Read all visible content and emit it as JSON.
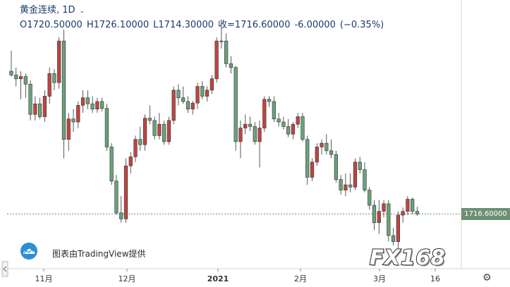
{
  "header": {
    "symbol": "黄金连续, 1D",
    "dropdown_icon": "chevron-down-icon",
    "open": "O1720.50000",
    "high": "H1726.10000",
    "low": "L1714.30000",
    "close": "收=1716.60000",
    "change": "-6.00000",
    "change_pct": "(−0.35%)"
  },
  "price_tag": "1716.60000",
  "attribution": "图表由TradingView提供",
  "watermark": "FX168",
  "colors": {
    "up": "#c0453f",
    "down": "#6aa27c",
    "header_text": "#1a3a6b",
    "last_price": "#6d8f76"
  },
  "chart_data": {
    "type": "candlestick",
    "x_ticks": [
      "11月",
      "12月",
      "2021",
      "2月",
      "3月",
      "16"
    ],
    "last_price": 1716.6,
    "ohlc": [
      [
        1905,
        1932,
        1898,
        1900
      ],
      [
        1900,
        1910,
        1885,
        1895
      ],
      [
        1895,
        1905,
        1868,
        1898
      ],
      [
        1898,
        1902,
        1870,
        1888
      ],
      [
        1888,
        1893,
        1840,
        1848
      ],
      [
        1848,
        1872,
        1840,
        1862
      ],
      [
        1862,
        1870,
        1842,
        1845
      ],
      [
        1845,
        1880,
        1838,
        1872
      ],
      [
        1872,
        1910,
        1862,
        1902
      ],
      [
        1902,
        1908,
        1880,
        1890
      ],
      [
        1890,
        1950,
        1882,
        1945
      ],
      [
        1945,
        1960,
        1790,
        1815
      ],
      [
        1815,
        1850,
        1800,
        1842
      ],
      [
        1842,
        1855,
        1825,
        1838
      ],
      [
        1838,
        1865,
        1830,
        1860
      ],
      [
        1860,
        1880,
        1850,
        1870
      ],
      [
        1870,
        1880,
        1855,
        1862
      ],
      [
        1862,
        1872,
        1850,
        1855
      ],
      [
        1855,
        1870,
        1850,
        1865
      ],
      [
        1865,
        1870,
        1852,
        1856
      ],
      [
        1856,
        1862,
        1800,
        1805
      ],
      [
        1805,
        1810,
        1755,
        1760
      ],
      [
        1760,
        1768,
        1715,
        1718
      ],
      [
        1718,
        1740,
        1705,
        1710
      ],
      [
        1710,
        1790,
        1705,
        1780
      ],
      [
        1780,
        1798,
        1770,
        1792
      ],
      [
        1792,
        1820,
        1785,
        1815
      ],
      [
        1815,
        1832,
        1800,
        1808
      ],
      [
        1808,
        1848,
        1800,
        1843
      ],
      [
        1843,
        1860,
        1835,
        1840
      ],
      [
        1840,
        1845,
        1815,
        1820
      ],
      [
        1820,
        1850,
        1815,
        1835
      ],
      [
        1835,
        1840,
        1808,
        1812
      ],
      [
        1812,
        1845,
        1808,
        1840
      ],
      [
        1840,
        1885,
        1835,
        1880
      ],
      [
        1880,
        1888,
        1860,
        1870
      ],
      [
        1870,
        1885,
        1862,
        1865
      ],
      [
        1865,
        1872,
        1850,
        1855
      ],
      [
        1855,
        1866,
        1848,
        1863
      ],
      [
        1863,
        1890,
        1855,
        1885
      ],
      [
        1885,
        1892,
        1868,
        1872
      ],
      [
        1872,
        1885,
        1865,
        1880
      ],
      [
        1880,
        1900,
        1875,
        1895
      ],
      [
        1895,
        1950,
        1890,
        1945
      ],
      [
        1945,
        1962,
        1935,
        1945
      ],
      [
        1945,
        1955,
        1910,
        1915
      ],
      [
        1915,
        1925,
        1902,
        1910
      ],
      [
        1910,
        1912,
        1800,
        1812
      ],
      [
        1812,
        1840,
        1790,
        1830
      ],
      [
        1830,
        1848,
        1822,
        1835
      ],
      [
        1835,
        1845,
        1826,
        1832
      ],
      [
        1832,
        1838,
        1808,
        1812
      ],
      [
        1812,
        1840,
        1778,
        1830
      ],
      [
        1830,
        1872,
        1825,
        1868
      ],
      [
        1868,
        1872,
        1858,
        1865
      ],
      [
        1865,
        1872,
        1838,
        1842
      ],
      [
        1842,
        1850,
        1832,
        1838
      ],
      [
        1838,
        1845,
        1828,
        1832
      ],
      [
        1832,
        1842,
        1818,
        1822
      ],
      [
        1822,
        1838,
        1815,
        1835
      ],
      [
        1835,
        1850,
        1830,
        1845
      ],
      [
        1845,
        1850,
        1812,
        1815
      ],
      [
        1815,
        1820,
        1755,
        1765
      ],
      [
        1765,
        1790,
        1760,
        1785
      ],
      [
        1785,
        1810,
        1780,
        1805
      ],
      [
        1805,
        1815,
        1795,
        1810
      ],
      [
        1810,
        1822,
        1795,
        1800
      ],
      [
        1800,
        1815,
        1790,
        1795
      ],
      [
        1795,
        1800,
        1758,
        1762
      ],
      [
        1762,
        1768,
        1742,
        1748
      ],
      [
        1748,
        1770,
        1740,
        1755
      ],
      [
        1755,
        1770,
        1745,
        1752
      ],
      [
        1752,
        1790,
        1748,
        1785
      ],
      [
        1785,
        1792,
        1770,
        1775
      ],
      [
        1775,
        1785,
        1745,
        1748
      ],
      [
        1748,
        1752,
        1722,
        1728
      ],
      [
        1728,
        1735,
        1695,
        1705
      ],
      [
        1705,
        1735,
        1690,
        1720
      ],
      [
        1720,
        1735,
        1712,
        1730
      ],
      [
        1730,
        1735,
        1680,
        1688
      ],
      [
        1688,
        1698,
        1675,
        1680
      ],
      [
        1680,
        1720,
        1670,
        1715
      ],
      [
        1715,
        1725,
        1705,
        1720
      ],
      [
        1720,
        1740,
        1715,
        1736
      ],
      [
        1736,
        1738,
        1716,
        1720
      ],
      [
        1720,
        1726,
        1714,
        1716.6
      ]
    ]
  }
}
